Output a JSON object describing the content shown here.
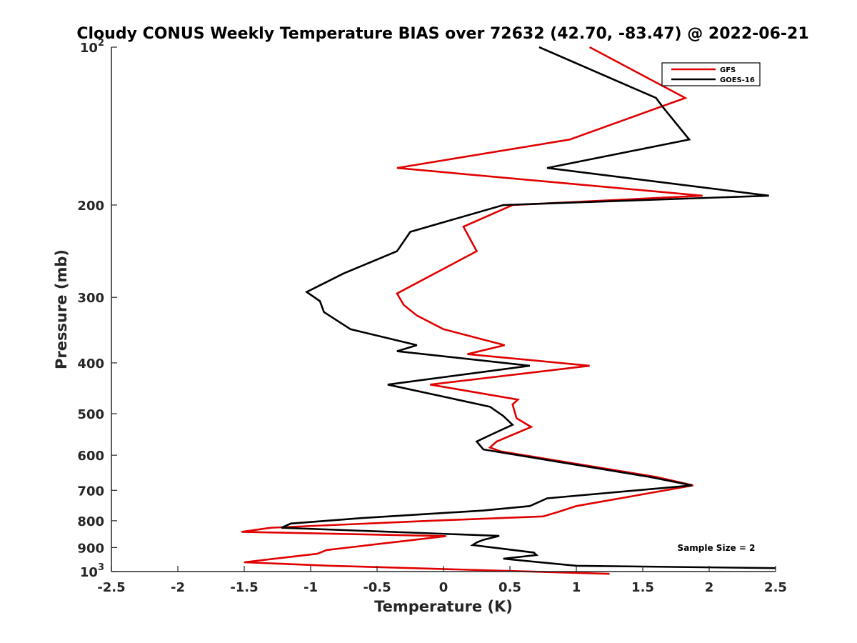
{
  "chart_data": {
    "type": "line",
    "title": "Cloudy CONUS Weekly Temperature BIAS over 72632 (42.70, -83.47) @ 2022-06-21",
    "xlabel": "Temperature (K)",
    "ylabel": "Pressure (mb)",
    "xlim": [
      -2.5,
      2.5
    ],
    "ylim": [
      100,
      1000
    ],
    "yscale": "log",
    "y_reversed": true,
    "x_ticks": [
      -2.5,
      -2,
      -1.5,
      -1,
      -0.5,
      0,
      0.5,
      1,
      1.5,
      2,
      2.5
    ],
    "x_tick_labels": [
      "-2.5",
      "-2",
      "-1.5",
      "-1",
      "-0.5",
      "0",
      "0.5",
      "1",
      "1.5",
      "2",
      "2.5"
    ],
    "y_ticks": [
      100,
      200,
      300,
      400,
      500,
      600,
      700,
      800,
      900,
      1000
    ],
    "y_tick_labels": [
      {
        "base": "10",
        "exp": "2"
      },
      {
        "base": "200",
        "exp": ""
      },
      {
        "base": "300",
        "exp": ""
      },
      {
        "base": "400",
        "exp": ""
      },
      {
        "base": "500",
        "exp": ""
      },
      {
        "base": "600",
        "exp": ""
      },
      {
        "base": "700",
        "exp": ""
      },
      {
        "base": "800",
        "exp": ""
      },
      {
        "base": "900",
        "exp": ""
      },
      {
        "base": "10",
        "exp": "3"
      }
    ],
    "grid": false,
    "legend_position": "top-right",
    "annotation": "Sample Size = 2",
    "series": [
      {
        "name": "GFS",
        "color": "#e00000",
        "points": [
          [
            1.1,
            100
          ],
          [
            1.82,
            125
          ],
          [
            0.95,
            150
          ],
          [
            -0.35,
            170
          ],
          [
            1.95,
            192
          ],
          [
            0.52,
            200
          ],
          [
            0.15,
            220
          ],
          [
            0.25,
            245
          ],
          [
            -0.35,
            295
          ],
          [
            -0.3,
            310
          ],
          [
            -0.2,
            325
          ],
          [
            0.0,
            345
          ],
          [
            0.46,
            370
          ],
          [
            0.18,
            385
          ],
          [
            1.1,
            405
          ],
          [
            -0.1,
            440
          ],
          [
            0.56,
            470
          ],
          [
            0.52,
            480
          ],
          [
            0.55,
            510
          ],
          [
            0.66,
            530
          ],
          [
            0.4,
            565
          ],
          [
            0.35,
            580
          ],
          [
            0.43,
            590
          ],
          [
            1.6,
            660
          ],
          [
            1.88,
            685
          ],
          [
            1.0,
            750
          ],
          [
            0.86,
            770
          ],
          [
            0.75,
            785
          ],
          [
            -0.1,
            800
          ],
          [
            -1.3,
            825
          ],
          [
            -1.52,
            840
          ],
          [
            0.02,
            856
          ],
          [
            -0.88,
            910
          ],
          [
            -0.95,
            925
          ],
          [
            -1.5,
            960
          ],
          [
            -0.85,
            975
          ],
          [
            1.25,
            1010
          ]
        ]
      },
      {
        "name": "GOES-16",
        "color": "#000000",
        "points": [
          [
            0.72,
            100
          ],
          [
            1.6,
            125
          ],
          [
            1.65,
            130
          ],
          [
            1.85,
            150
          ],
          [
            0.78,
            170
          ],
          [
            2.45,
            192
          ],
          [
            0.45,
            200
          ],
          [
            -0.25,
            225
          ],
          [
            -0.35,
            245
          ],
          [
            -0.75,
            270
          ],
          [
            -1.03,
            293
          ],
          [
            -0.93,
            305
          ],
          [
            -0.9,
            320
          ],
          [
            -0.7,
            345
          ],
          [
            -0.2,
            370
          ],
          [
            -0.35,
            380
          ],
          [
            0.65,
            405
          ],
          [
            -0.42,
            440
          ],
          [
            0.35,
            485
          ],
          [
            0.45,
            505
          ],
          [
            0.52,
            525
          ],
          [
            0.38,
            545
          ],
          [
            0.25,
            565
          ],
          [
            0.3,
            585
          ],
          [
            1.55,
            660
          ],
          [
            1.87,
            685
          ],
          [
            0.78,
            725
          ],
          [
            0.65,
            750
          ],
          [
            0.3,
            765
          ],
          [
            -0.6,
            790
          ],
          [
            -1.15,
            810
          ],
          [
            -1.22,
            825
          ],
          [
            0.42,
            855
          ],
          [
            0.3,
            870
          ],
          [
            0.25,
            880
          ],
          [
            0.22,
            890
          ],
          [
            0.68,
            920
          ],
          [
            0.7,
            930
          ],
          [
            0.45,
            945
          ],
          [
            1.0,
            975
          ],
          [
            2.5,
            985
          ]
        ]
      }
    ]
  }
}
